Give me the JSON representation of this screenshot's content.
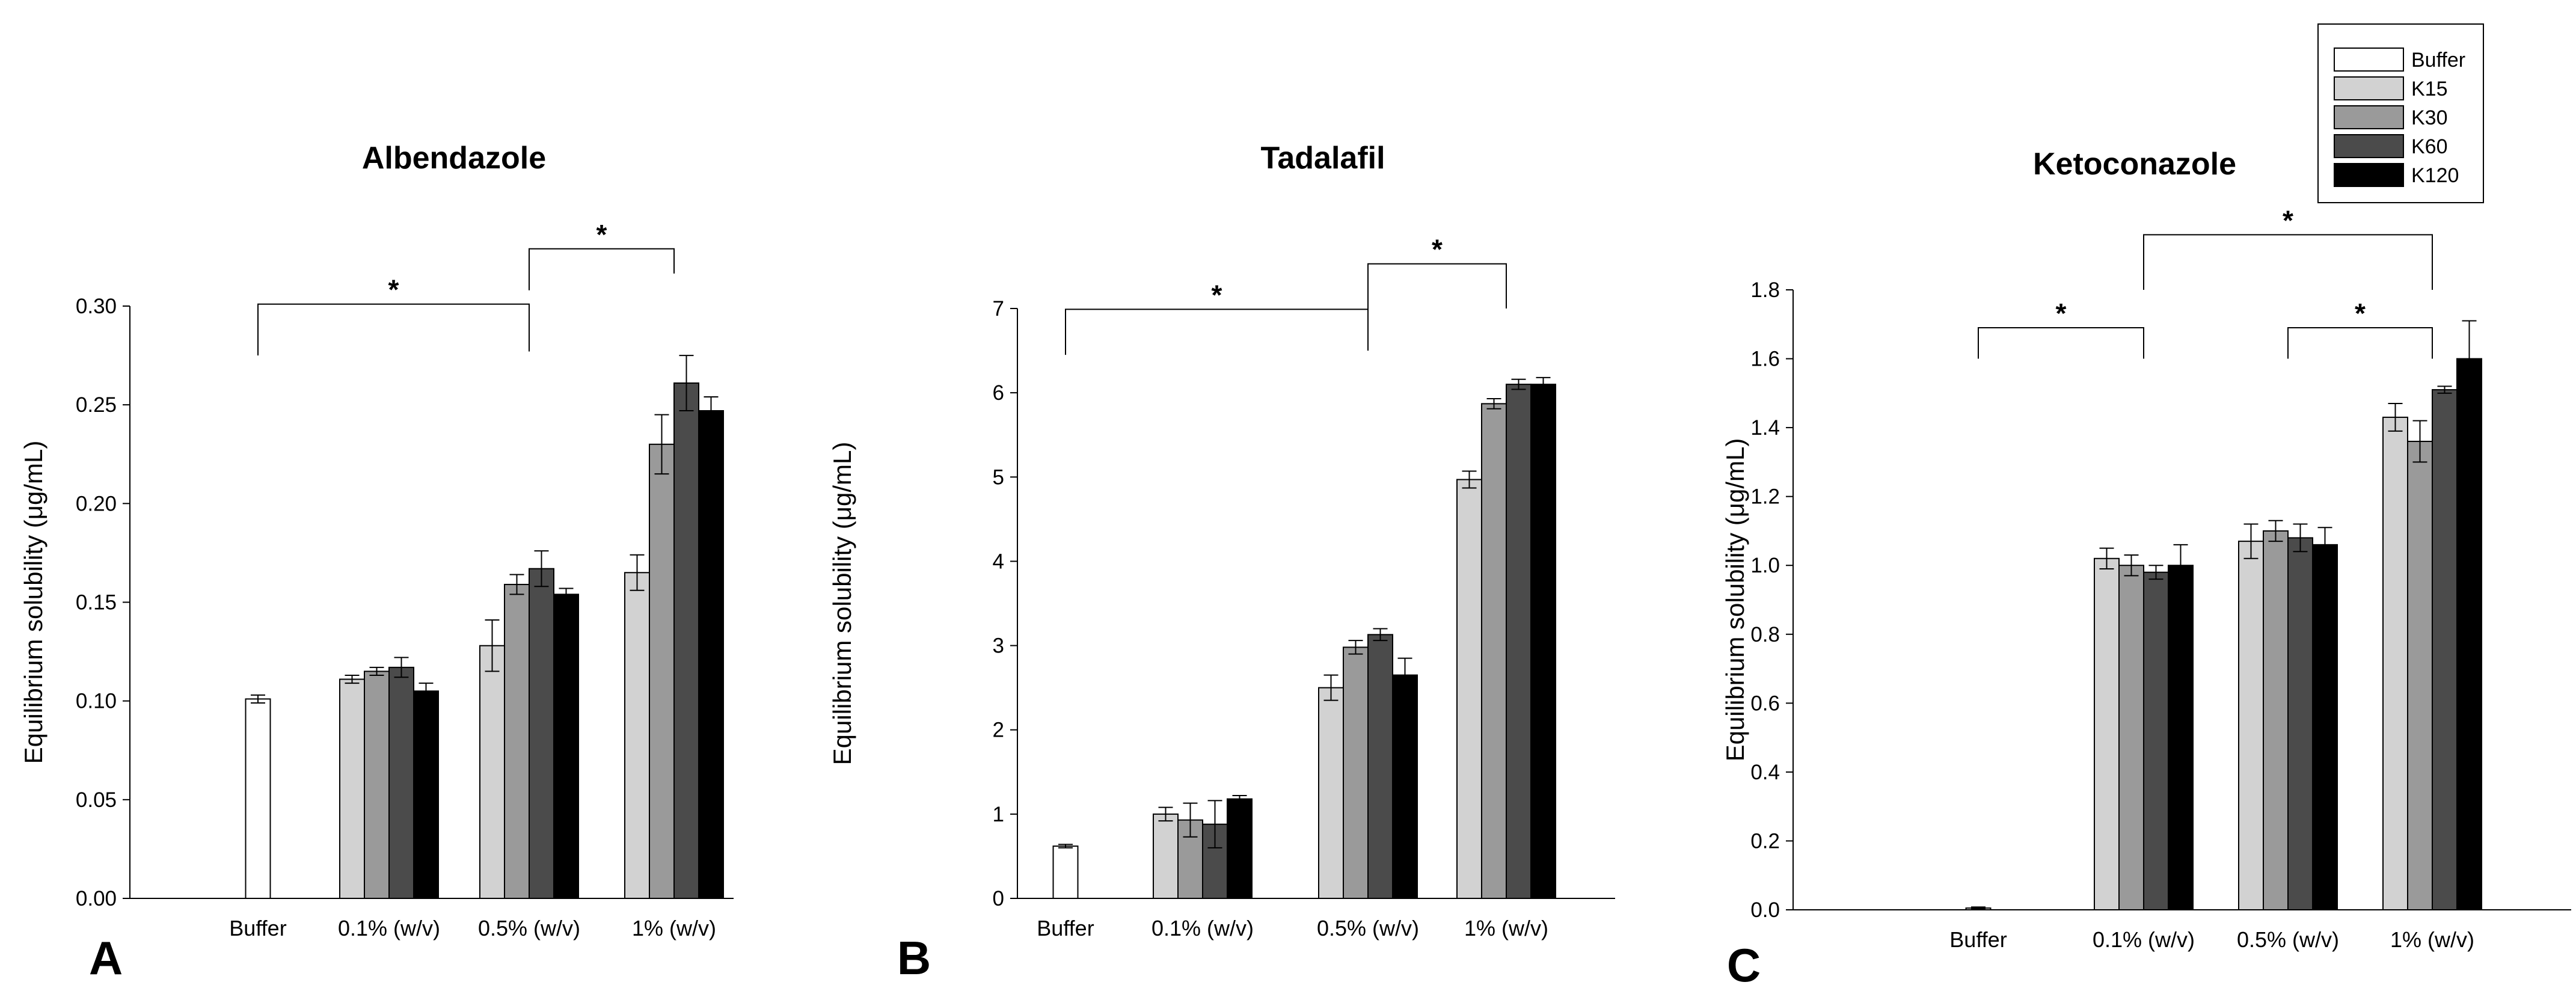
{
  "chart_data": [
    {
      "type": "bar",
      "title": "Albendazole",
      "panel_label": "A",
      "ylabel": "Equilibrium solubility (μg/mL)",
      "xlabel": "",
      "ylim": [
        0,
        0.3
      ],
      "yticks": [
        "0.00",
        "0.05",
        "0.10",
        "0.15",
        "0.20",
        "0.25",
        "0.30"
      ],
      "categories": [
        "Buffer",
        "0.1% (w/v)",
        "0.5% (w/v)",
        "1% (w/v)"
      ],
      "series": [
        {
          "name": "Buffer",
          "values": [
            0.101,
            null,
            null,
            null
          ],
          "errors": [
            0.002,
            null,
            null,
            null
          ]
        },
        {
          "name": "K15",
          "values": [
            null,
            0.111,
            0.128,
            0.165
          ],
          "errors": [
            null,
            0.002,
            0.013,
            0.009
          ]
        },
        {
          "name": "K30",
          "values": [
            null,
            0.115,
            0.159,
            0.23
          ],
          "errors": [
            null,
            0.002,
            0.005,
            0.015
          ]
        },
        {
          "name": "K60",
          "values": [
            null,
            0.117,
            0.167,
            0.261
          ],
          "errors": [
            null,
            0.005,
            0.009,
            0.014
          ]
        },
        {
          "name": "K120",
          "values": [
            null,
            0.105,
            0.154,
            0.247
          ],
          "errors": [
            null,
            0.004,
            0.003,
            0.007
          ]
        }
      ],
      "significance": [
        {
          "from": 0,
          "to": 2,
          "label": "*",
          "level": 0.301,
          "left_drop": 0.275,
          "right_drop": 0.277
        },
        {
          "from": 2,
          "to": 3,
          "label": "*",
          "level": 0.329,
          "left_drop": 0.308,
          "right_drop": 0.3165
        }
      ]
    },
    {
      "type": "bar",
      "title": "Tadalafil",
      "panel_label": "B",
      "ylabel": "Equilibrium solubility (μg/mL)",
      "xlabel": "",
      "ylim": [
        0,
        7
      ],
      "yticks": [
        "0",
        "1",
        "2",
        "3",
        "4",
        "5",
        "6",
        "7"
      ],
      "categories": [
        "Buffer",
        "0.1% (w/v)",
        "0.5% (w/v)",
        "1% (w/v)"
      ],
      "series": [
        {
          "name": "Buffer",
          "values": [
            0.62,
            null,
            null,
            null
          ],
          "errors": [
            0.02,
            null,
            null,
            null
          ]
        },
        {
          "name": "K15",
          "values": [
            null,
            1.0,
            2.5,
            4.97
          ],
          "errors": [
            null,
            0.08,
            0.15,
            0.1
          ]
        },
        {
          "name": "K30",
          "values": [
            null,
            0.93,
            2.98,
            5.87
          ],
          "errors": [
            null,
            0.2,
            0.08,
            0.06
          ]
        },
        {
          "name": "K60",
          "values": [
            null,
            0.88,
            3.13,
            6.1
          ],
          "errors": [
            null,
            0.28,
            0.07,
            0.06
          ]
        },
        {
          "name": "K120",
          "values": [
            null,
            1.18,
            2.65,
            6.1
          ],
          "errors": [
            null,
            0.04,
            0.2,
            0.08
          ]
        }
      ],
      "significance": [
        {
          "from": 0,
          "to": 2,
          "label": "*",
          "level": 6.99,
          "left_drop": 6.45,
          "right_drop": 6.5
        },
        {
          "from": 2,
          "to": 3,
          "label": "*",
          "level": 7.53,
          "left_drop": 6.98,
          "right_drop": 7.0
        }
      ]
    },
    {
      "type": "bar",
      "title": "Ketoconazole",
      "panel_label": "C",
      "ylabel": "Equilibrium solubility (μg/mL)",
      "xlabel": "",
      "ylim": [
        0,
        1.8
      ],
      "yticks": [
        "0.0",
        "0.2",
        "0.4",
        "0.6",
        "0.8",
        "1.0",
        "1.2",
        "1.4",
        "1.6",
        "1.8"
      ],
      "categories": [
        "Buffer",
        "0.1% (w/v)",
        "0.5% (w/v)",
        "1% (w/v)"
      ],
      "series": [
        {
          "name": "Buffer",
          "values": [
            0.005,
            null,
            null,
            null
          ],
          "errors": [
            0.003,
            null,
            null,
            null
          ]
        },
        {
          "name": "K15",
          "values": [
            null,
            1.02,
            1.07,
            1.43
          ],
          "errors": [
            null,
            0.03,
            0.05,
            0.04
          ]
        },
        {
          "name": "K30",
          "values": [
            null,
            1.0,
            1.1,
            1.36
          ],
          "errors": [
            null,
            0.03,
            0.03,
            0.06
          ]
        },
        {
          "name": "K60",
          "values": [
            null,
            0.98,
            1.08,
            1.51
          ],
          "errors": [
            null,
            0.02,
            0.04,
            0.01
          ]
        },
        {
          "name": "K120",
          "values": [
            null,
            1.0,
            1.06,
            1.6
          ],
          "errors": [
            null,
            0.06,
            0.05,
            0.11
          ]
        }
      ],
      "significance": [
        {
          "from": 0,
          "to": 1,
          "label": "*",
          "level": 1.69,
          "left_drop": 1.6,
          "right_drop": 1.6
        },
        {
          "from": 2,
          "to": 3,
          "label": "*",
          "level": 1.69,
          "left_drop": 1.6,
          "right_drop": 1.6
        },
        {
          "from": 1,
          "to": 3,
          "label": "*",
          "level": 1.96,
          "left_drop": 1.8,
          "right_drop": 1.8
        }
      ]
    }
  ],
  "legend": {
    "entries": [
      "Buffer",
      "K15",
      "K30",
      "K60",
      "K120"
    ]
  },
  "colors": {
    "Buffer": "#ffffff",
    "K15": "#d2d2d2",
    "K30": "#9a9a9a",
    "K60": "#4b4b4b",
    "K120": "#000000",
    "axis": "#000000"
  }
}
